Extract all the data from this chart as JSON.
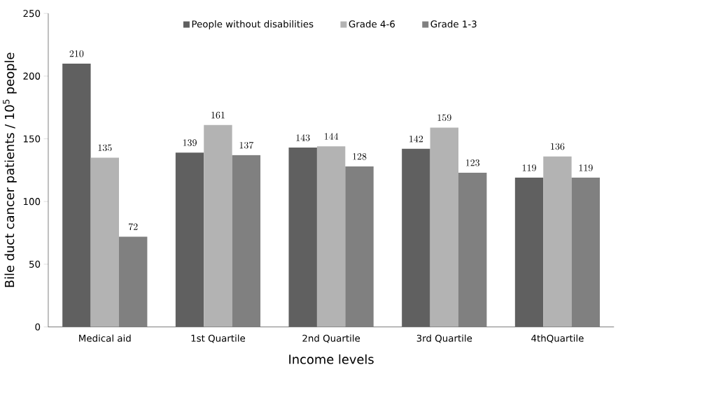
{
  "chart_data": {
    "type": "bar",
    "xlabel": "Income levels",
    "ylabel": "Bile duct cancer patients / 10$^{5}$ people",
    "categories": [
      "Medical aid",
      "1st Quartile",
      "2nd Quartile",
      "3rd Quartile",
      "4thQuartile"
    ],
    "series": [
      {
        "name": "People without disabilities",
        "color": "#606060",
        "values": [
          210,
          139,
          143,
          142,
          119
        ]
      },
      {
        "name": "Grade 4-6",
        "color": "#b3b3b3",
        "values": [
          135,
          161,
          144,
          159,
          136
        ]
      },
      {
        "name": "Grade 1-3",
        "color": "#808080",
        "values": [
          72,
          137,
          128,
          123,
          119
        ]
      }
    ],
    "ylim": [
      0,
      250
    ],
    "yticks": [
      0,
      50,
      100,
      150,
      200,
      250
    ],
    "data_labels": true,
    "legend": "top",
    "grid": false
  }
}
